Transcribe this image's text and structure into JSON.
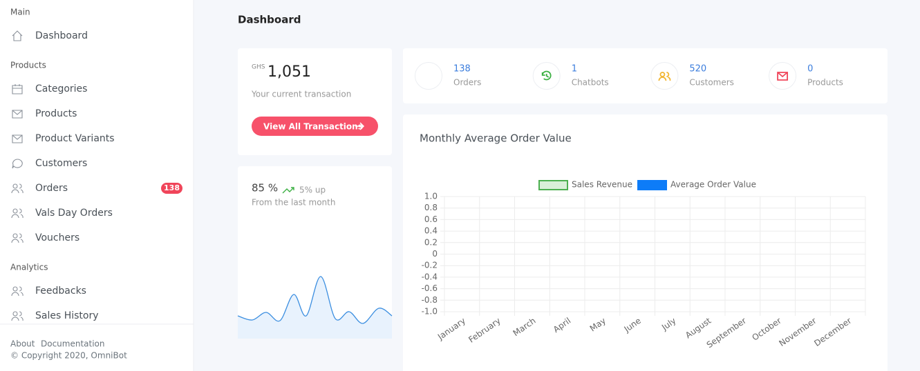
{
  "sidebar": {
    "sections": [
      {
        "title": "Main",
        "items": [
          {
            "label": "Dashboard"
          }
        ]
      },
      {
        "title": "Products",
        "items": [
          {
            "label": "Categories"
          },
          {
            "label": "Products"
          },
          {
            "label": "Product Variants"
          },
          {
            "label": "Customers"
          },
          {
            "label": "Orders",
            "badge": 138
          },
          {
            "label": "Vals Day Orders"
          },
          {
            "label": "Vouchers"
          }
        ]
      },
      {
        "title": "Analytics",
        "items": [
          {
            "label": "Feedbacks"
          },
          {
            "label": "Sales History"
          }
        ]
      }
    ],
    "footer": {
      "links": [
        "About",
        "Documentation"
      ],
      "copyright": "© Copyright 2020, OmniBot"
    }
  },
  "header": {
    "title": "Dashboard"
  },
  "transaction": {
    "currency": "GHS",
    "amount": "1,051",
    "caption": "Your current transaction",
    "button": "View All Transactions"
  },
  "growth": {
    "value": "85 %",
    "change": "5% up",
    "caption": "From the last month"
  },
  "stats": [
    {
      "value": 138,
      "label": "Orders"
    },
    {
      "value": 1,
      "label": "Chatbots"
    },
    {
      "value": 520,
      "label": "Customers"
    },
    {
      "value": 0,
      "label": "Products"
    }
  ],
  "chart_data": {
    "type": "line",
    "title": "Monthly Average Order Value",
    "categories": [
      "January",
      "February",
      "March",
      "April",
      "May",
      "June",
      "July",
      "August",
      "September",
      "October",
      "November",
      "December"
    ],
    "series": [
      {
        "name": "Sales Revenue",
        "color": "#4caf50",
        "fill": "#d9efd9",
        "values": [
          null,
          null,
          null,
          null,
          null,
          null,
          null,
          null,
          null,
          null,
          null,
          null
        ]
      },
      {
        "name": "Average Order Value",
        "color": "#0d7cf8",
        "fill": "#0d7cf8",
        "values": [
          null,
          null,
          null,
          null,
          null,
          null,
          null,
          null,
          null,
          null,
          null,
          null
        ]
      }
    ],
    "ylim": [
      -1,
      1
    ],
    "yticks": [
      {
        "value": 1,
        "label": "1.0"
      },
      0.8,
      0.6,
      0.4,
      0.2,
      0,
      -0.2,
      -0.4,
      -0.6,
      -0.8,
      {
        "value": -1,
        "label": "-1.0"
      }
    ],
    "grid": true,
    "legend": "top"
  }
}
